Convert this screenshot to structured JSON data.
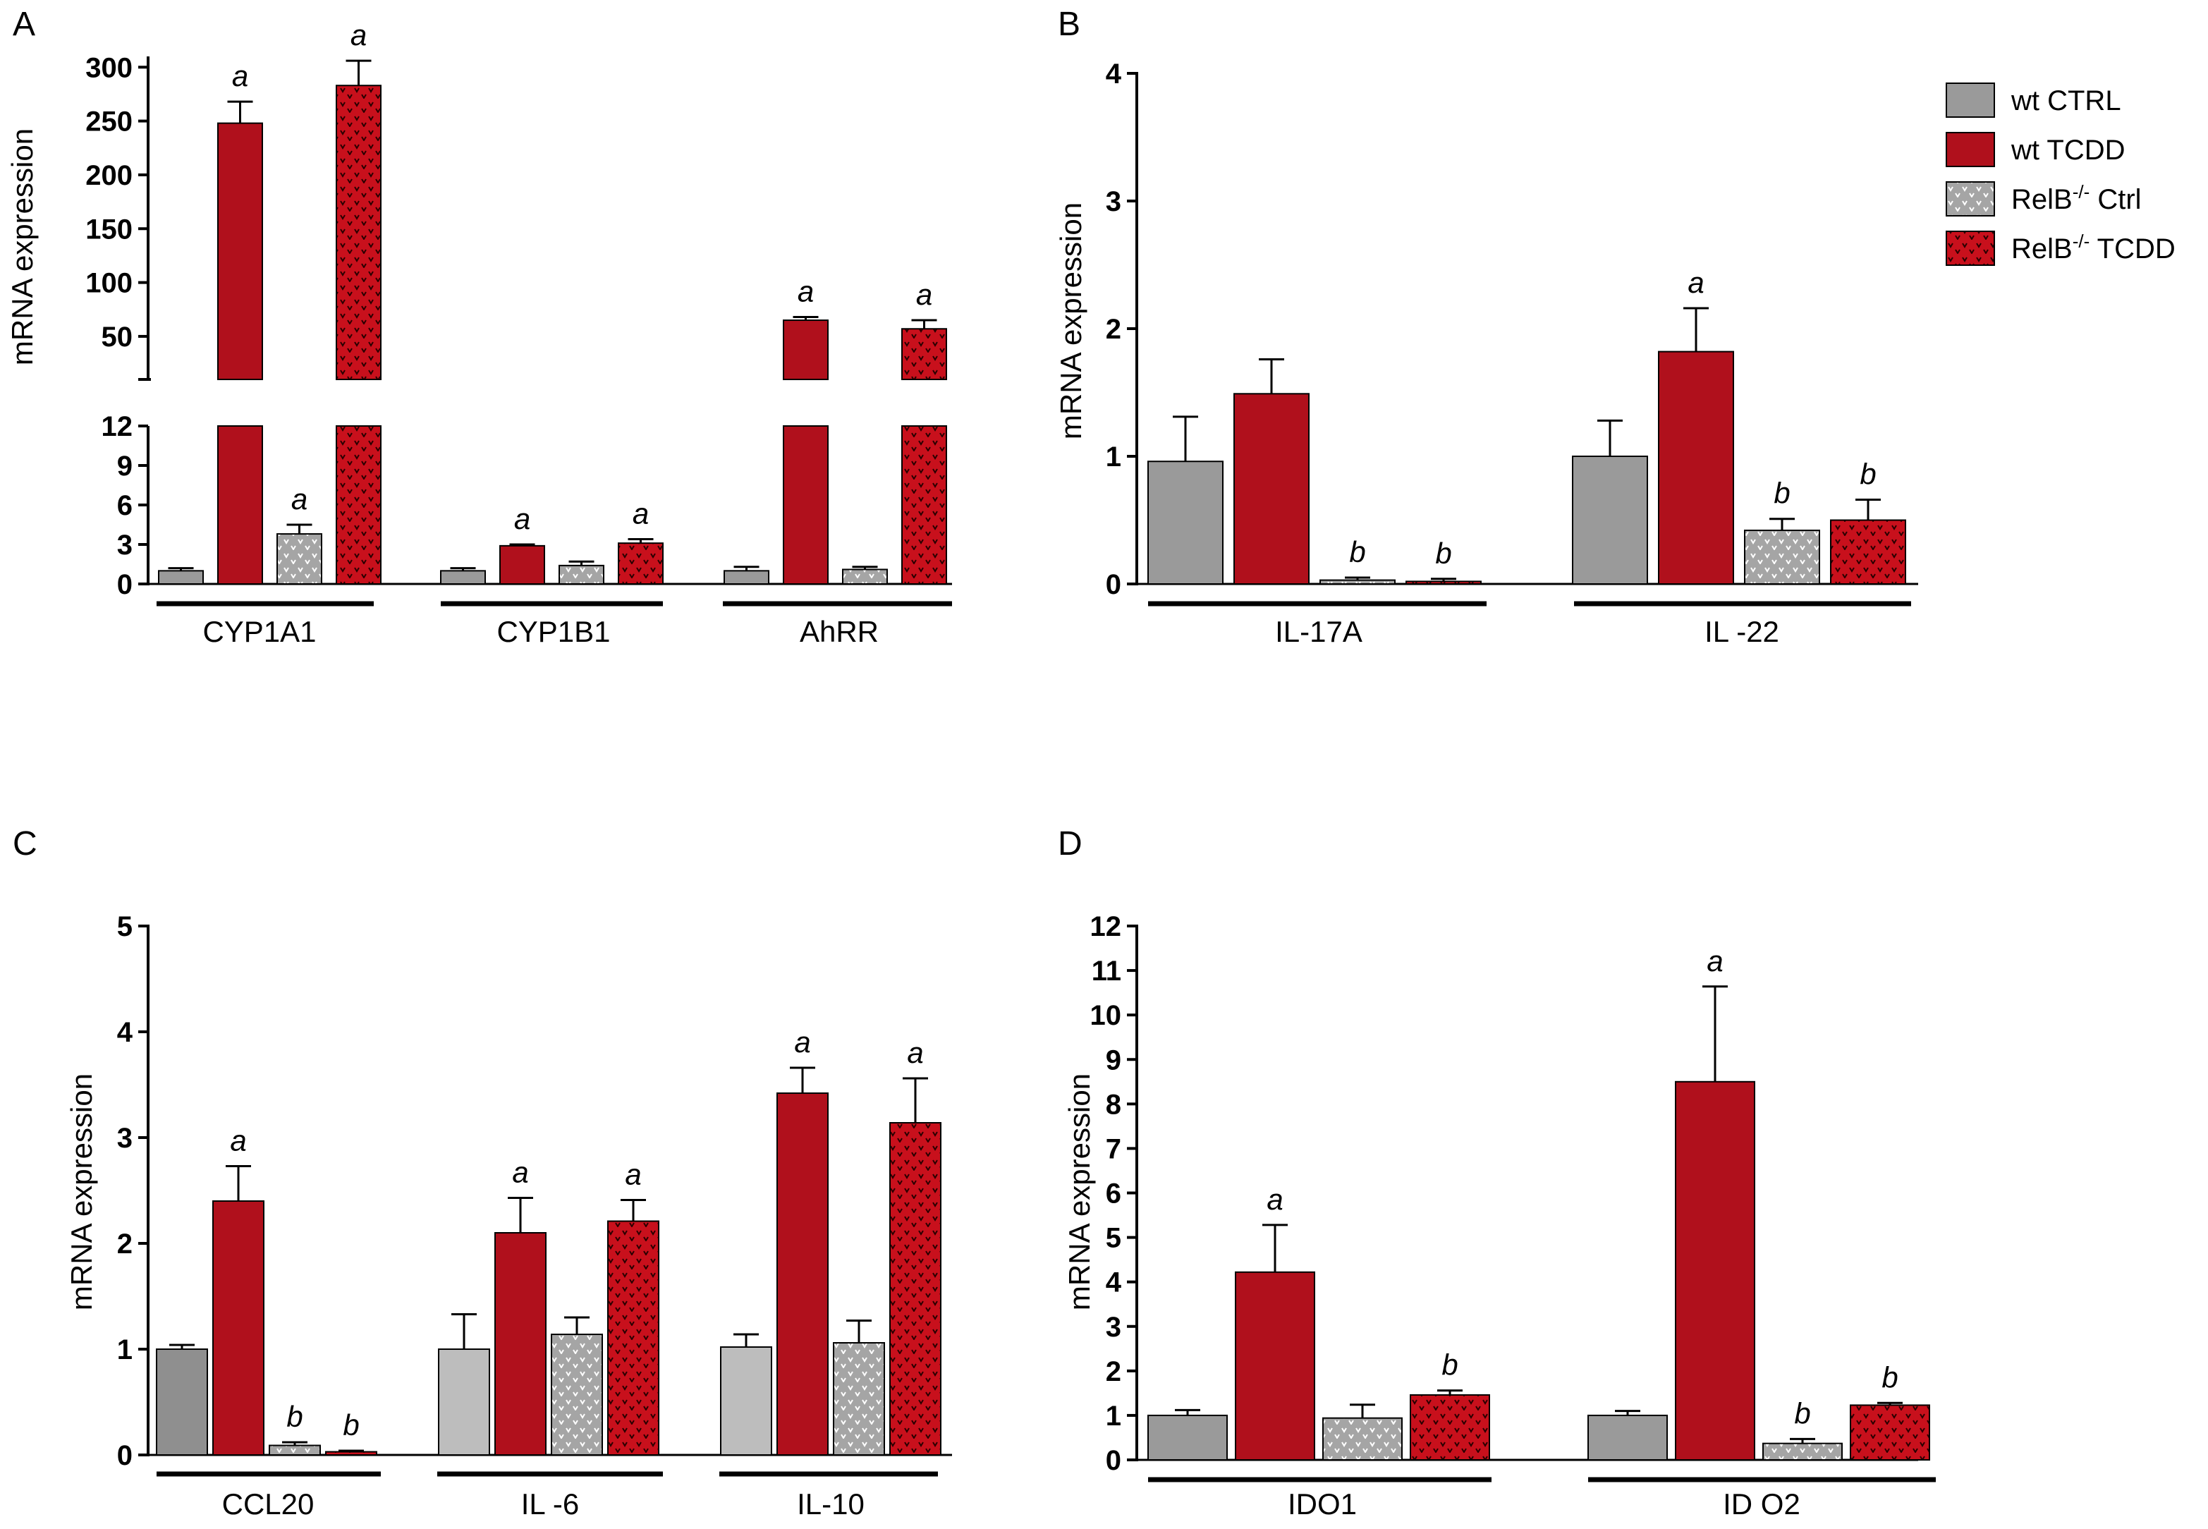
{
  "colors": {
    "wt_ctrl": "#9a9a9a",
    "wt_ctrl_light": "#bdbdbd",
    "wt_ctrl_dark": "#8f8f8f",
    "wt_tcdd": "#b0101c",
    "relb_ctrl": "#a5a5a5",
    "relb_tcdd": "#c8101c"
  },
  "legend": {
    "items": [
      {
        "key": "wt_ctrl",
        "label": "wt CTRL",
        "pattern": false
      },
      {
        "key": "wt_tcdd",
        "label": "wt TCDD",
        "pattern": false
      },
      {
        "key": "relb_ctrl",
        "label": "RelB",
        "sup": "-/-",
        "suffix": " Ctrl",
        "pattern": true
      },
      {
        "key": "relb_tcdd",
        "label": "RelB",
        "sup": "-/-",
        "suffix": " TCDD",
        "pattern": true
      }
    ],
    "placement": "top-right"
  },
  "chart_data": [
    {
      "panel": "A",
      "type": "bar",
      "ylabel": "mRNA expression",
      "broken_axis": true,
      "lower_ylim": [
        0,
        12
      ],
      "lower_ticks": [
        "0",
        "3",
        "6",
        "9",
        "12"
      ],
      "upper_ylim": [
        10,
        310
      ],
      "upper_ticks": [
        "50",
        "100",
        "150",
        "200",
        "250",
        "300"
      ],
      "categories": [
        "CYP1A1",
        "CYP1B1",
        "AhRR"
      ],
      "series": [
        {
          "key": "wt_ctrl",
          "values": [
            1.0,
            1.0,
            1.0
          ],
          "errors": [
            0.2,
            0.2,
            0.3
          ],
          "sig": [
            "",
            "",
            ""
          ]
        },
        {
          "key": "wt_tcdd",
          "values": [
            248,
            2.9,
            65
          ],
          "errors": [
            20,
            0.1,
            3
          ],
          "sig": [
            "a",
            "a",
            "a"
          ]
        },
        {
          "key": "relb_ctrl",
          "values": [
            3.8,
            1.4,
            1.1
          ],
          "errors": [
            0.7,
            0.3,
            0.2
          ],
          "sig": [
            "a",
            "",
            ""
          ]
        },
        {
          "key": "relb_tcdd",
          "values": [
            283,
            3.1,
            57
          ],
          "errors": [
            23,
            0.3,
            8
          ],
          "sig": [
            "a",
            "a",
            "a"
          ]
        }
      ]
    },
    {
      "panel": "B",
      "type": "bar",
      "ylabel": "mRNA expression",
      "ylim": [
        0,
        4
      ],
      "ticks": [
        "0",
        "1",
        "2",
        "3",
        "4"
      ],
      "categories": [
        "IL-17A",
        "IL -22"
      ],
      "series": [
        {
          "key": "wt_ctrl",
          "values": [
            0.96,
            1.0
          ],
          "errors": [
            0.35,
            0.28
          ],
          "sig": [
            "",
            ""
          ]
        },
        {
          "key": "wt_tcdd",
          "values": [
            1.49,
            1.82
          ],
          "errors": [
            0.27,
            0.34
          ],
          "sig": [
            "",
            "a"
          ]
        },
        {
          "key": "relb_ctrl",
          "values": [
            0.03,
            0.42
          ],
          "errors": [
            0.02,
            0.09
          ],
          "sig": [
            "b",
            "b"
          ]
        },
        {
          "key": "relb_tcdd",
          "values": [
            0.02,
            0.5
          ],
          "errors": [
            0.02,
            0.16
          ],
          "sig": [
            "b",
            "b"
          ]
        }
      ]
    },
    {
      "panel": "C",
      "type": "bar",
      "ylabel": "mRNA expression",
      "ylim": [
        0,
        5
      ],
      "ticks": [
        "0",
        "1",
        "2",
        "3",
        "4",
        "5"
      ],
      "categories": [
        "CCL20",
        "IL -6",
        "IL-10"
      ],
      "series": [
        {
          "key": "wt_ctrl",
          "values": [
            1.0,
            1.0,
            1.02
          ],
          "errors": [
            0.04,
            0.33,
            0.12
          ],
          "sig": [
            "",
            "",
            ""
          ]
        },
        {
          "key": "wt_tcdd",
          "values": [
            2.4,
            2.1,
            3.42
          ],
          "errors": [
            0.33,
            0.33,
            0.24
          ],
          "sig": [
            "a",
            "a",
            "a"
          ]
        },
        {
          "key": "relb_ctrl",
          "values": [
            0.09,
            1.14,
            1.06
          ],
          "errors": [
            0.03,
            0.16,
            0.21
          ],
          "sig": [
            "b",
            "",
            ""
          ]
        },
        {
          "key": "relb_tcdd",
          "values": [
            0.03,
            2.21,
            3.14
          ],
          "errors": [
            0.01,
            0.2,
            0.42
          ],
          "sig": [
            "b",
            "a",
            "a"
          ]
        }
      ]
    },
    {
      "panel": "D",
      "type": "bar",
      "ylabel": "mRNA expression",
      "ylim": [
        0,
        12
      ],
      "ticks": [
        "0",
        "1",
        "2",
        "3",
        "4",
        "5",
        "6",
        "7",
        "8",
        "9",
        "10",
        "11",
        "12"
      ],
      "categories": [
        "IDO1",
        "ID O2"
      ],
      "series": [
        {
          "key": "wt_ctrl",
          "values": [
            1.0,
            1.0
          ],
          "errors": [
            0.12,
            0.1
          ],
          "sig": [
            "",
            ""
          ]
        },
        {
          "key": "wt_tcdd",
          "values": [
            4.22,
            8.5
          ],
          "errors": [
            1.06,
            2.14
          ],
          "sig": [
            "a",
            "a"
          ]
        },
        {
          "key": "relb_ctrl",
          "values": [
            0.94,
            0.37
          ],
          "errors": [
            0.3,
            0.1
          ],
          "sig": [
            "",
            "b"
          ]
        },
        {
          "key": "relb_tcdd",
          "values": [
            1.46,
            1.23
          ],
          "errors": [
            0.1,
            0.05
          ],
          "sig": [
            "b",
            "b"
          ]
        }
      ]
    }
  ]
}
